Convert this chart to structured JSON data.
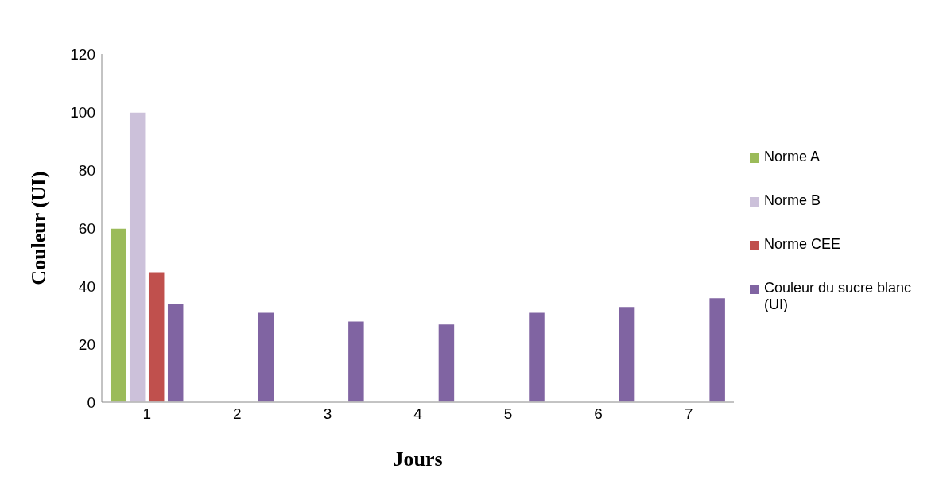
{
  "chart_data": {
    "type": "bar",
    "xlabel": "Jours",
    "ylabel": "Couleur (UI)",
    "categories": [
      "1",
      "2",
      "3",
      "4",
      "5",
      "6",
      "7"
    ],
    "series": [
      {
        "name": "Norme A",
        "color": "#9bbb59",
        "values": [
          60,
          null,
          null,
          null,
          null,
          null,
          null
        ]
      },
      {
        "name": "Norme B",
        "color": "#ccc1da",
        "values": [
          100,
          null,
          null,
          null,
          null,
          null,
          null
        ]
      },
      {
        "name": "Norme CEE",
        "color": "#c0504d",
        "values": [
          45,
          null,
          null,
          null,
          null,
          null,
          null
        ]
      },
      {
        "name": "Couleur du sucre blanc (UI)",
        "color": "#8064a2",
        "values": [
          34,
          31,
          28,
          27,
          31,
          33,
          36
        ]
      }
    ],
    "ylim": [
      0,
      120
    ],
    "yticks": [
      0,
      20,
      40,
      60,
      80,
      100,
      120
    ],
    "legend": "right"
  }
}
